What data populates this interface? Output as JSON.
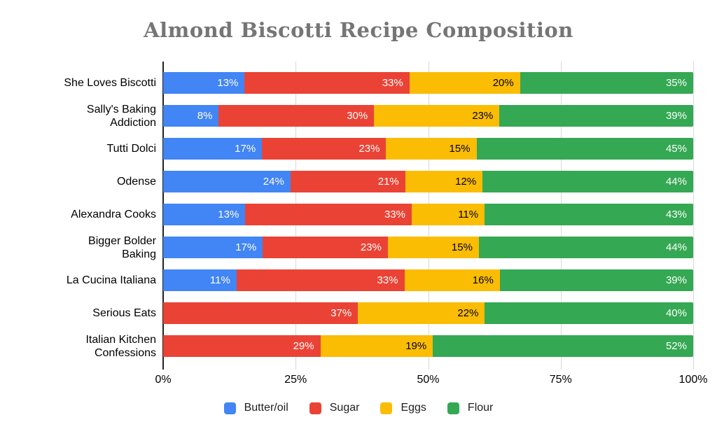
{
  "chart_data": {
    "type": "bar",
    "stacked": "100%",
    "orientation": "horizontal",
    "title": "Almond Biscotti Recipe Composition",
    "title_color": "#757575",
    "categories": [
      "She Loves Biscotti",
      "Sally's Baking Addiction",
      "Tutti Dolci",
      "Odense",
      "Alexandra Cooks",
      "Bigger Bolder Baking",
      "La Cucina Italiana",
      "Serious Eats",
      "Italian Kitchen Confessions"
    ],
    "series": [
      {
        "name": "Butter/oil",
        "color": "#4285F4",
        "label_color": "#ffffff",
        "values": [
          13,
          8,
          17,
          24,
          13,
          17,
          11,
          0,
          0
        ]
      },
      {
        "name": "Sugar",
        "color": "#EA4335",
        "label_color": "#ffffff",
        "values": [
          33,
          30,
          23,
          21,
          33,
          23,
          33,
          37,
          29
        ]
      },
      {
        "name": "Eggs",
        "color": "#FBBC04",
        "label_color": "#000000",
        "values": [
          20,
          23,
          15,
          12,
          11,
          15,
          16,
          22,
          19
        ]
      },
      {
        "name": "Flour",
        "color": "#34A853",
        "label_color": "#ffffff",
        "values": [
          35,
          39,
          45,
          44,
          43,
          44,
          39,
          40,
          52
        ]
      }
    ],
    "value_suffix": "%",
    "x_ticks": [
      {
        "label": "0%",
        "pos": 0
      },
      {
        "label": "25%",
        "pos": 25
      },
      {
        "label": "50%",
        "pos": 50
      },
      {
        "label": "75%",
        "pos": 75
      },
      {
        "label": "100%",
        "pos": 100
      }
    ],
    "xlim": [
      0,
      100
    ],
    "grid": true,
    "legend_position": "bottom",
    "gridline_color": "#d9d9d9",
    "axis_line_color": "#212121"
  }
}
